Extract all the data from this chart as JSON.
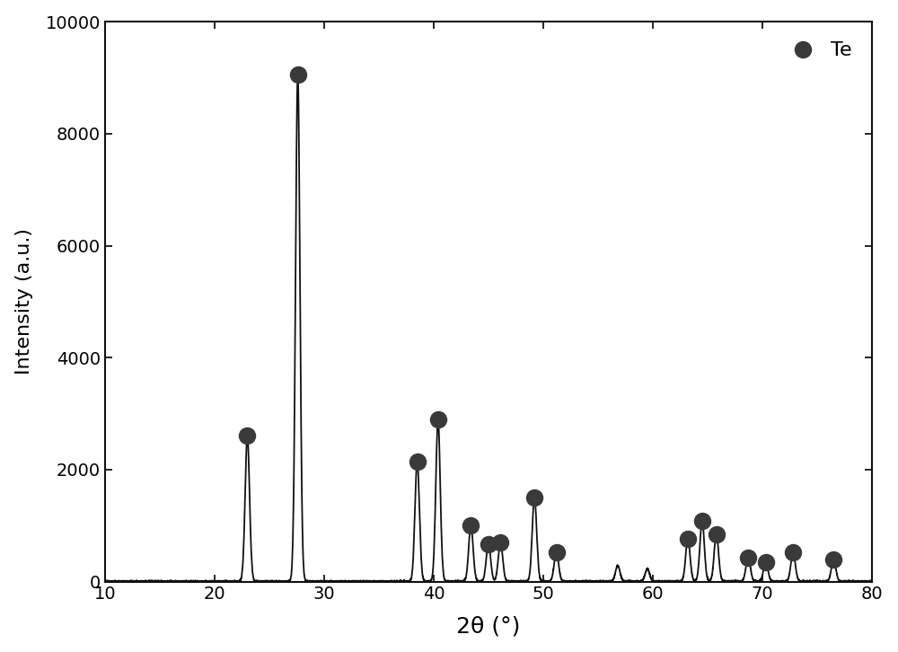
{
  "xlabel": "2θ (°)",
  "ylabel": "Intensity (a.u.)",
  "xlim": [
    10,
    80
  ],
  "ylim": [
    0,
    10000
  ],
  "yticks": [
    0,
    2000,
    4000,
    6000,
    8000,
    10000
  ],
  "xticks": [
    10,
    20,
    30,
    40,
    50,
    60,
    70,
    80
  ],
  "background_color": "#ffffff",
  "line_color": "#111111",
  "marker_color": "#3a3a3a",
  "legend_label": "Te",
  "peaks": [
    {
      "x": 23.0,
      "intensity": 2600
    },
    {
      "x": 27.6,
      "intensity": 9050
    },
    {
      "x": 38.5,
      "intensity": 2150
    },
    {
      "x": 40.4,
      "intensity": 2900
    },
    {
      "x": 43.4,
      "intensity": 1000
    },
    {
      "x": 45.0,
      "intensity": 670
    },
    {
      "x": 46.1,
      "intensity": 700
    },
    {
      "x": 49.2,
      "intensity": 1500
    },
    {
      "x": 51.2,
      "intensity": 520
    },
    {
      "x": 63.2,
      "intensity": 760
    },
    {
      "x": 64.5,
      "intensity": 1080
    },
    {
      "x": 65.8,
      "intensity": 840
    },
    {
      "x": 68.7,
      "intensity": 430
    },
    {
      "x": 70.3,
      "intensity": 350
    },
    {
      "x": 72.8,
      "intensity": 520
    },
    {
      "x": 76.5,
      "intensity": 390
    }
  ],
  "small_peaks": [
    {
      "x": 56.8,
      "intensity": 280
    },
    {
      "x": 59.5,
      "intensity": 220
    }
  ],
  "figsize": [
    10.0,
    7.26
  ],
  "dpi": 100,
  "sigma": 0.2,
  "linewidth": 1.3,
  "markersize": 13,
  "tick_labelsize": 14,
  "xlabel_fontsize": 18,
  "ylabel_fontsize": 16,
  "legend_fontsize": 16
}
